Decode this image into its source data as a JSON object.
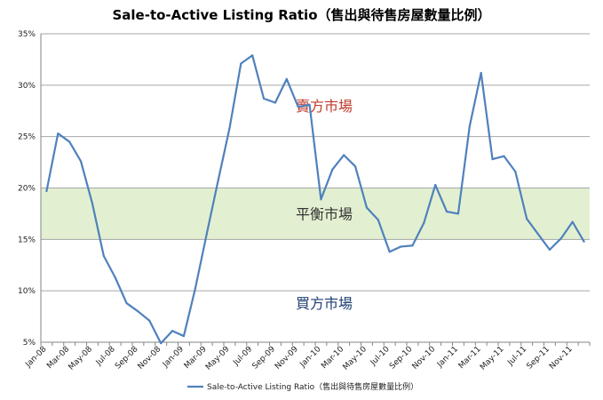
{
  "chart_data": {
    "type": "line",
    "title": "Sale-to-Active Listing Ratio（售出與待售房屋數量比例）",
    "xlabel": "",
    "ylabel": "",
    "ylim": [
      0.05,
      0.35
    ],
    "y_ticks": [
      {
        "value": 0.05,
        "label": "5%"
      },
      {
        "value": 0.1,
        "label": "10%"
      },
      {
        "value": 0.15,
        "label": "15%"
      },
      {
        "value": 0.2,
        "label": "20%"
      },
      {
        "value": 0.25,
        "label": "25%"
      },
      {
        "value": 0.3,
        "label": "30%"
      },
      {
        "value": 0.35,
        "label": "35%"
      }
    ],
    "grid": true,
    "legend_position": "bottom",
    "categories": [
      "Jan-08",
      "Feb-08",
      "Mar-08",
      "Apr-08",
      "May-08",
      "Jun-08",
      "Jul-08",
      "Aug-08",
      "Sep-08",
      "Oct-08",
      "Nov-08",
      "Dec-08",
      "Jan-09",
      "Feb-09",
      "Mar-09",
      "Apr-09",
      "May-09",
      "Jun-09",
      "Jul-09",
      "Aug-09",
      "Sep-09",
      "Oct-09",
      "Nov-09",
      "Dec-09",
      "Jan-10",
      "Feb-10",
      "Mar-10",
      "Apr-10",
      "May-10",
      "Jun-10",
      "Jul-10",
      "Aug-10",
      "Sep-10",
      "Oct-10",
      "Nov-10",
      "Dec-10",
      "Jan-11",
      "Feb-11",
      "Mar-11",
      "Apr-11",
      "May-11",
      "Jun-11",
      "Jul-11",
      "Aug-11",
      "Sep-11",
      "Oct-11",
      "Nov-11",
      "Dec-11"
    ],
    "x_tick_labels": [
      "Jan-08",
      "Mar-08",
      "May-08",
      "Jul-08",
      "Sep-08",
      "Nov-08",
      "Jan-09",
      "Mar-09",
      "May-09",
      "Jul-09",
      "Sep-09",
      "Nov-09",
      "Jan-10",
      "Mar-10",
      "May-10",
      "Jul-10",
      "Sep-10",
      "Nov-10",
      "Jan-11",
      "Mar-11",
      "May-11",
      "Jul-11",
      "Sep-11",
      "Nov-11"
    ],
    "series": [
      {
        "name": "Sale-to-Active Listing Ratio（售出與待售房屋數量比例）",
        "color": "#4f81bd",
        "values": [
          0.197,
          0.253,
          0.245,
          0.226,
          0.185,
          0.134,
          0.113,
          0.088,
          0.08,
          0.071,
          0.049,
          0.061,
          0.056,
          0.102,
          0.155,
          0.207,
          0.258,
          0.321,
          0.329,
          0.287,
          0.283,
          0.306,
          0.279,
          0.281,
          0.189,
          0.218,
          0.232,
          0.221,
          0.181,
          0.169,
          0.138,
          0.143,
          0.144,
          0.166,
          0.203,
          0.177,
          0.175,
          0.26,
          0.312,
          0.228,
          0.231,
          0.216,
          0.17,
          0.155,
          0.14,
          0.151,
          0.167,
          0.148
        ]
      }
    ],
    "bands": [
      {
        "from": 0.15,
        "to": 0.2,
        "color": "#e2f0d1"
      }
    ],
    "annotations": [
      {
        "text": "賣方市場",
        "y": 0.28,
        "color": "#c0392b"
      },
      {
        "text": "平衡市場",
        "y": 0.175,
        "color": "#333333"
      },
      {
        "text": "買方市場",
        "y": 0.088,
        "color": "#1f3f6f"
      }
    ]
  }
}
